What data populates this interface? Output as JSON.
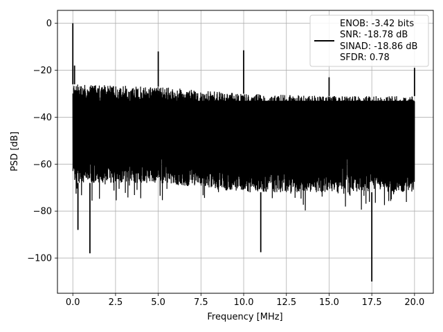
{
  "chart_data": {
    "type": "line",
    "xlabel": "Frequency [MHz]",
    "ylabel": "PSD [dB]",
    "xlim": [
      -0.9,
      21.1
    ],
    "ylim": [
      -115,
      5.5
    ],
    "x_ticks": [
      0.0,
      2.5,
      5.0,
      7.5,
      10.0,
      12.5,
      15.0,
      17.5,
      20.0
    ],
    "x_tick_labels": [
      "0.0",
      "2.5",
      "5.0",
      "7.5",
      "10.0",
      "12.5",
      "15.0",
      "17.5",
      "20.0"
    ],
    "y_ticks": [
      0,
      -20,
      -40,
      -60,
      -80,
      -100
    ],
    "y_tick_labels": [
      "0",
      "−20",
      "−40",
      "−60",
      "−80",
      "−100"
    ],
    "grid": true,
    "legend_position": "top-right",
    "legend": [
      "ENOB: -3.42 bits",
      "SNR: -18.78 dB",
      "SINAD: -18.86 dB",
      "SFDR: 0.78"
    ],
    "series": [
      {
        "color": "#000000",
        "x_range": [
          0,
          20
        ],
        "noise_floor_upper_db": [
          [
            0.2,
            -26
          ],
          [
            5,
            -27
          ],
          [
            10,
            -30
          ],
          [
            15,
            -31
          ],
          [
            20,
            -31
          ]
        ],
        "noise_floor_lower_db": [
          [
            0.2,
            -68
          ],
          [
            5,
            -68
          ],
          [
            10,
            -72
          ],
          [
            15,
            -72
          ],
          [
            20,
            -72
          ]
        ],
        "spikes": [
          {
            "x": 0.0,
            "y": 0
          },
          {
            "x": 0.1,
            "y": -18
          },
          {
            "x": 5.0,
            "y": -12
          },
          {
            "x": 10.0,
            "y": -11.5
          },
          {
            "x": 15.0,
            "y": -23
          },
          {
            "x": 20.0,
            "y": -19
          },
          {
            "x": 0.3,
            "y": -88
          },
          {
            "x": 1.0,
            "y": -98
          },
          {
            "x": 11.0,
            "y": -97.5
          },
          {
            "x": 17.5,
            "y": -110
          }
        ]
      }
    ]
  }
}
